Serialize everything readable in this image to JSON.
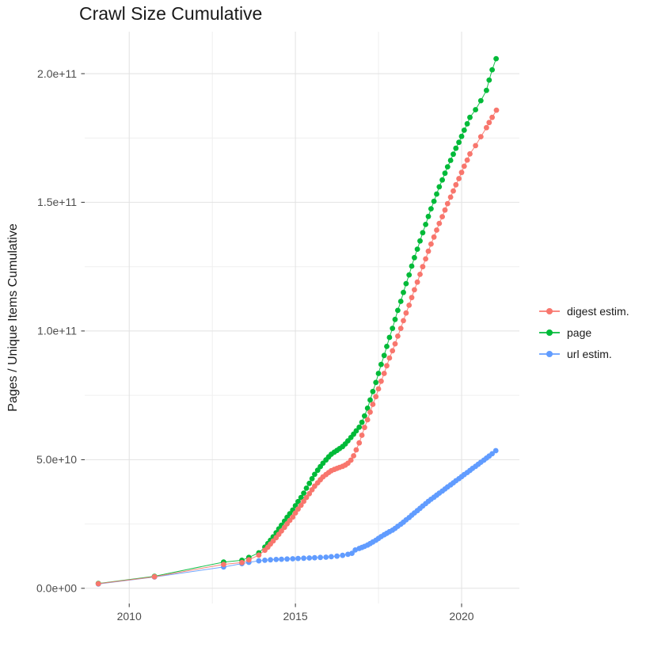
{
  "title": "Crawl Size Cumulative",
  "chart_data": {
    "type": "scatter",
    "title": "Crawl Size Cumulative",
    "xlabel": "",
    "ylabel": "Pages / Unique Items Cumulative",
    "x_ticks": [
      2010,
      2015,
      2020
    ],
    "x_tick_labels": [
      "2010",
      "2015",
      "2020"
    ],
    "x_minor_ticks": [
      2012.5,
      2017.5
    ],
    "y_ticks": [
      0,
      50000000000.0,
      100000000000.0,
      150000000000.0,
      200000000000.0
    ],
    "y_tick_labels": [
      "0.0e+00",
      "5.0e+10",
      "1.0e+11",
      "1.5e+11",
      "2.0e+11"
    ],
    "y_minor_ticks": [
      25000000000.0,
      75000000000.0,
      125000000000.0,
      175000000000.0
    ],
    "xlim": [
      2008.66,
      2021.74
    ],
    "ylim": [
      -5900000000.0,
      216300000000.0
    ],
    "grid": true,
    "legend": {
      "position": "right"
    },
    "series": [
      {
        "name": "digest estim.",
        "color": "#F8766D",
        "points": [
          [
            2009.07,
            1800000000.0
          ],
          [
            2010.76,
            4500000000.0
          ],
          [
            2012.84,
            9300000000.0
          ],
          [
            2013.39,
            10000000000.0
          ],
          [
            2013.6,
            11100000000.0
          ],
          [
            2013.9,
            12900000000.0
          ],
          [
            2014.08,
            14800000000.0
          ],
          [
            2014.17,
            16000000000.0
          ],
          [
            2014.25,
            17200000000.0
          ],
          [
            2014.33,
            18400000000.0
          ],
          [
            2014.42,
            19700000000.0
          ],
          [
            2014.5,
            21000000000.0
          ],
          [
            2014.58,
            22300000000.0
          ],
          [
            2014.67,
            23700000000.0
          ],
          [
            2014.75,
            25100000000.0
          ],
          [
            2014.83,
            26400000000.0
          ],
          [
            2014.92,
            27700000000.0
          ],
          [
            2015.0,
            29300000000.0
          ],
          [
            2015.08,
            30800000000.0
          ],
          [
            2015.17,
            32300000000.0
          ],
          [
            2015.25,
            33800000000.0
          ],
          [
            2015.33,
            35300000000.0
          ],
          [
            2015.42,
            36800000000.0
          ],
          [
            2015.5,
            38300000000.0
          ],
          [
            2015.58,
            39700000000.0
          ],
          [
            2015.67,
            41000000000.0
          ],
          [
            2015.75,
            42200000000.0
          ],
          [
            2015.83,
            43300000000.0
          ],
          [
            2015.92,
            44200000000.0
          ],
          [
            2016.0,
            45000000000.0
          ],
          [
            2016.08,
            45700000000.0
          ],
          [
            2016.17,
            46200000000.0
          ],
          [
            2016.25,
            46600000000.0
          ],
          [
            2016.33,
            47000000000.0
          ],
          [
            2016.42,
            47400000000.0
          ],
          [
            2016.5,
            47900000000.0
          ],
          [
            2016.58,
            48600000000.0
          ],
          [
            2016.67,
            49800000000.0
          ],
          [
            2016.75,
            51500000000.0
          ],
          [
            2016.83,
            53800000000.0
          ],
          [
            2016.92,
            56500000000.0
          ],
          [
            2017.0,
            59500000000.0
          ],
          [
            2017.08,
            62500000000.0
          ],
          [
            2017.17,
            65500000000.0
          ],
          [
            2017.25,
            68500000000.0
          ],
          [
            2017.33,
            71500000000.0
          ],
          [
            2017.42,
            74500000000.0
          ],
          [
            2017.5,
            77500000000.0
          ],
          [
            2017.58,
            80500000000.0
          ],
          [
            2017.67,
            83500000000.0
          ],
          [
            2017.75,
            86500000000.0
          ],
          [
            2017.83,
            89500000000.0
          ],
          [
            2017.92,
            92300000000.0
          ],
          [
            2018.0,
            95000000000.0
          ],
          [
            2018.08,
            98000000000.0
          ],
          [
            2018.17,
            101000000000.0
          ],
          [
            2018.25,
            104000000000.0
          ],
          [
            2018.33,
            107000000000.0
          ],
          [
            2018.42,
            110000000000.0
          ],
          [
            2018.5,
            113000000000.0
          ],
          [
            2018.58,
            116000000000.0
          ],
          [
            2018.67,
            119000000000.0
          ],
          [
            2018.75,
            122000000000.0
          ],
          [
            2018.83,
            125000000000.0
          ],
          [
            2018.92,
            128000000000.0
          ],
          [
            2019.0,
            131000000000.0
          ],
          [
            2019.08,
            133800000000.0
          ],
          [
            2019.17,
            136500000000.0
          ],
          [
            2019.25,
            139200000000.0
          ],
          [
            2019.33,
            141800000000.0
          ],
          [
            2019.42,
            144400000000.0
          ],
          [
            2019.5,
            147000000000.0
          ],
          [
            2019.58,
            149500000000.0
          ],
          [
            2019.67,
            152000000000.0
          ],
          [
            2019.75,
            154400000000.0
          ],
          [
            2019.83,
            156800000000.0
          ],
          [
            2019.92,
            159200000000.0
          ],
          [
            2020.0,
            161600000000.0
          ],
          [
            2020.08,
            164000000000.0
          ],
          [
            2020.17,
            166400000000.0
          ],
          [
            2020.25,
            168800000000.0
          ],
          [
            2020.42,
            172000000000.0
          ],
          [
            2020.58,
            175500000000.0
          ],
          [
            2020.75,
            179000000000.0
          ],
          [
            2020.83,
            181000000000.0
          ],
          [
            2020.92,
            183000000000.0
          ],
          [
            2021.05,
            185800000000.0
          ]
        ]
      },
      {
        "name": "page",
        "color": "#00BA38",
        "points": [
          [
            2009.07,
            1900000000.0
          ],
          [
            2010.76,
            4700000000.0
          ],
          [
            2012.84,
            10200000000.0
          ],
          [
            2013.39,
            10900000000.0
          ],
          [
            2013.6,
            12000000000.0
          ],
          [
            2013.9,
            13800000000.0
          ],
          [
            2014.08,
            16000000000.0
          ],
          [
            2014.17,
            17400000000.0
          ],
          [
            2014.25,
            18700000000.0
          ],
          [
            2014.33,
            20000000000.0
          ],
          [
            2014.42,
            21600000000.0
          ],
          [
            2014.5,
            23100000000.0
          ],
          [
            2014.58,
            24500000000.0
          ],
          [
            2014.67,
            26100000000.0
          ],
          [
            2014.75,
            27600000000.0
          ],
          [
            2014.83,
            29000000000.0
          ],
          [
            2014.92,
            30400000000.0
          ],
          [
            2015.0,
            32100000000.0
          ],
          [
            2015.08,
            33700000000.0
          ],
          [
            2015.17,
            35300000000.0
          ],
          [
            2015.25,
            37000000000.0
          ],
          [
            2015.33,
            38900000000.0
          ],
          [
            2015.42,
            40800000000.0
          ],
          [
            2015.5,
            42600000000.0
          ],
          [
            2015.58,
            44300000000.0
          ],
          [
            2015.67,
            45900000000.0
          ],
          [
            2015.75,
            47300000000.0
          ],
          [
            2015.83,
            48600000000.0
          ],
          [
            2015.92,
            49900000000.0
          ],
          [
            2016.0,
            51100000000.0
          ],
          [
            2016.08,
            52100000000.0
          ],
          [
            2016.17,
            52900000000.0
          ],
          [
            2016.25,
            53600000000.0
          ],
          [
            2016.33,
            54300000000.0
          ],
          [
            2016.42,
            55100000000.0
          ],
          [
            2016.5,
            56100000000.0
          ],
          [
            2016.58,
            57300000000.0
          ],
          [
            2016.67,
            58600000000.0
          ],
          [
            2016.75,
            59900000000.0
          ],
          [
            2016.83,
            61200000000.0
          ],
          [
            2016.92,
            62600000000.0
          ],
          [
            2017.0,
            64500000000.0
          ],
          [
            2017.08,
            67000000000.0
          ],
          [
            2017.17,
            70000000000.0
          ],
          [
            2017.25,
            73200000000.0
          ],
          [
            2017.33,
            76500000000.0
          ],
          [
            2017.42,
            80000000000.0
          ],
          [
            2017.5,
            83500000000.0
          ],
          [
            2017.58,
            87000000000.0
          ],
          [
            2017.67,
            90500000000.0
          ],
          [
            2017.75,
            94000000000.0
          ],
          [
            2017.83,
            97500000000.0
          ],
          [
            2017.92,
            101000000000.0
          ],
          [
            2018.0,
            104500000000.0
          ],
          [
            2018.08,
            108000000000.0
          ],
          [
            2018.17,
            111500000000.0
          ],
          [
            2018.25,
            115000000000.0
          ],
          [
            2018.33,
            118400000000.0
          ],
          [
            2018.42,
            121800000000.0
          ],
          [
            2018.5,
            125200000000.0
          ],
          [
            2018.58,
            128500000000.0
          ],
          [
            2018.67,
            131800000000.0
          ],
          [
            2018.75,
            135000000000.0
          ],
          [
            2018.83,
            138200000000.0
          ],
          [
            2018.92,
            141400000000.0
          ],
          [
            2019.0,
            144500000000.0
          ],
          [
            2019.08,
            147500000000.0
          ],
          [
            2019.17,
            150400000000.0
          ],
          [
            2019.25,
            153200000000.0
          ],
          [
            2019.33,
            156000000000.0
          ],
          [
            2019.42,
            158700000000.0
          ],
          [
            2019.5,
            161300000000.0
          ],
          [
            2019.58,
            163800000000.0
          ],
          [
            2019.67,
            166300000000.0
          ],
          [
            2019.75,
            168700000000.0
          ],
          [
            2019.83,
            171000000000.0
          ],
          [
            2019.92,
            173300000000.0
          ],
          [
            2020.0,
            175600000000.0
          ],
          [
            2020.08,
            178000000000.0
          ],
          [
            2020.17,
            180500000000.0
          ],
          [
            2020.25,
            183000000000.0
          ],
          [
            2020.42,
            186000000000.0
          ],
          [
            2020.58,
            189500000000.0
          ],
          [
            2020.75,
            193500000000.0
          ],
          [
            2020.83,
            197500000000.0
          ],
          [
            2020.92,
            201500000000.0
          ],
          [
            2021.04,
            205800000000.0
          ]
        ]
      },
      {
        "name": "url estim.",
        "color": "#619CFF",
        "points": [
          [
            2009.07,
            1700000000.0
          ],
          [
            2010.76,
            4400000000.0
          ],
          [
            2012.84,
            8300000000.0
          ],
          [
            2013.39,
            9600000000.0
          ],
          [
            2013.6,
            10100000000.0
          ],
          [
            2013.9,
            10700000000.0
          ],
          [
            2014.08,
            10900000000.0
          ],
          [
            2014.25,
            11100000000.0
          ],
          [
            2014.42,
            11200000000.0
          ],
          [
            2014.58,
            11300000000.0
          ],
          [
            2014.75,
            11400000000.0
          ],
          [
            2014.92,
            11500000000.0
          ],
          [
            2015.08,
            11600000000.0
          ],
          [
            2015.25,
            11700000000.0
          ],
          [
            2015.42,
            11800000000.0
          ],
          [
            2015.58,
            11900000000.0
          ],
          [
            2015.75,
            12000000000.0
          ],
          [
            2015.92,
            12100000000.0
          ],
          [
            2016.08,
            12300000000.0
          ],
          [
            2016.25,
            12500000000.0
          ],
          [
            2016.42,
            12800000000.0
          ],
          [
            2016.58,
            13200000000.0
          ],
          [
            2016.7,
            13600000000.0
          ],
          [
            2016.8,
            14900000000.0
          ],
          [
            2016.92,
            15500000000.0
          ],
          [
            2017.0,
            15900000000.0
          ],
          [
            2017.08,
            16300000000.0
          ],
          [
            2017.17,
            16800000000.0
          ],
          [
            2017.25,
            17400000000.0
          ],
          [
            2017.33,
            18000000000.0
          ],
          [
            2017.42,
            18700000000.0
          ],
          [
            2017.5,
            19400000000.0
          ],
          [
            2017.58,
            20100000000.0
          ],
          [
            2017.67,
            20800000000.0
          ],
          [
            2017.75,
            21400000000.0
          ],
          [
            2017.83,
            22000000000.0
          ],
          [
            2017.92,
            22600000000.0
          ],
          [
            2018.0,
            23300000000.0
          ],
          [
            2018.08,
            24100000000.0
          ],
          [
            2018.17,
            24900000000.0
          ],
          [
            2018.25,
            25700000000.0
          ],
          [
            2018.33,
            26600000000.0
          ],
          [
            2018.42,
            27500000000.0
          ],
          [
            2018.5,
            28400000000.0
          ],
          [
            2018.58,
            29300000000.0
          ],
          [
            2018.67,
            30200000000.0
          ],
          [
            2018.75,
            31100000000.0
          ],
          [
            2018.83,
            32000000000.0
          ],
          [
            2018.92,
            32900000000.0
          ],
          [
            2019.0,
            33800000000.0
          ],
          [
            2019.08,
            34600000000.0
          ],
          [
            2019.17,
            35400000000.0
          ],
          [
            2019.25,
            36200000000.0
          ],
          [
            2019.33,
            37000000000.0
          ],
          [
            2019.42,
            37800000000.0
          ],
          [
            2019.5,
            38600000000.0
          ],
          [
            2019.58,
            39400000000.0
          ],
          [
            2019.67,
            40200000000.0
          ],
          [
            2019.75,
            41000000000.0
          ],
          [
            2019.83,
            41800000000.0
          ],
          [
            2019.92,
            42600000000.0
          ],
          [
            2020.0,
            43400000000.0
          ],
          [
            2020.08,
            44200000000.0
          ],
          [
            2020.17,
            45000000000.0
          ],
          [
            2020.25,
            45800000000.0
          ],
          [
            2020.33,
            46600000000.0
          ],
          [
            2020.42,
            47400000000.0
          ],
          [
            2020.5,
            48200000000.0
          ],
          [
            2020.58,
            49000000000.0
          ],
          [
            2020.67,
            49800000000.0
          ],
          [
            2020.75,
            50600000000.0
          ],
          [
            2020.83,
            51400000000.0
          ],
          [
            2020.92,
            52300000000.0
          ],
          [
            2021.03,
            53500000000.0
          ]
        ]
      }
    ],
    "style": {
      "panel_background": "#ffffff",
      "grid_major_color": "#e2e2e2",
      "grid_minor_color": "#efefef",
      "tick_color": "#333333",
      "axis_text_color": "#4d4d4d",
      "point_radius": 3.4
    }
  }
}
